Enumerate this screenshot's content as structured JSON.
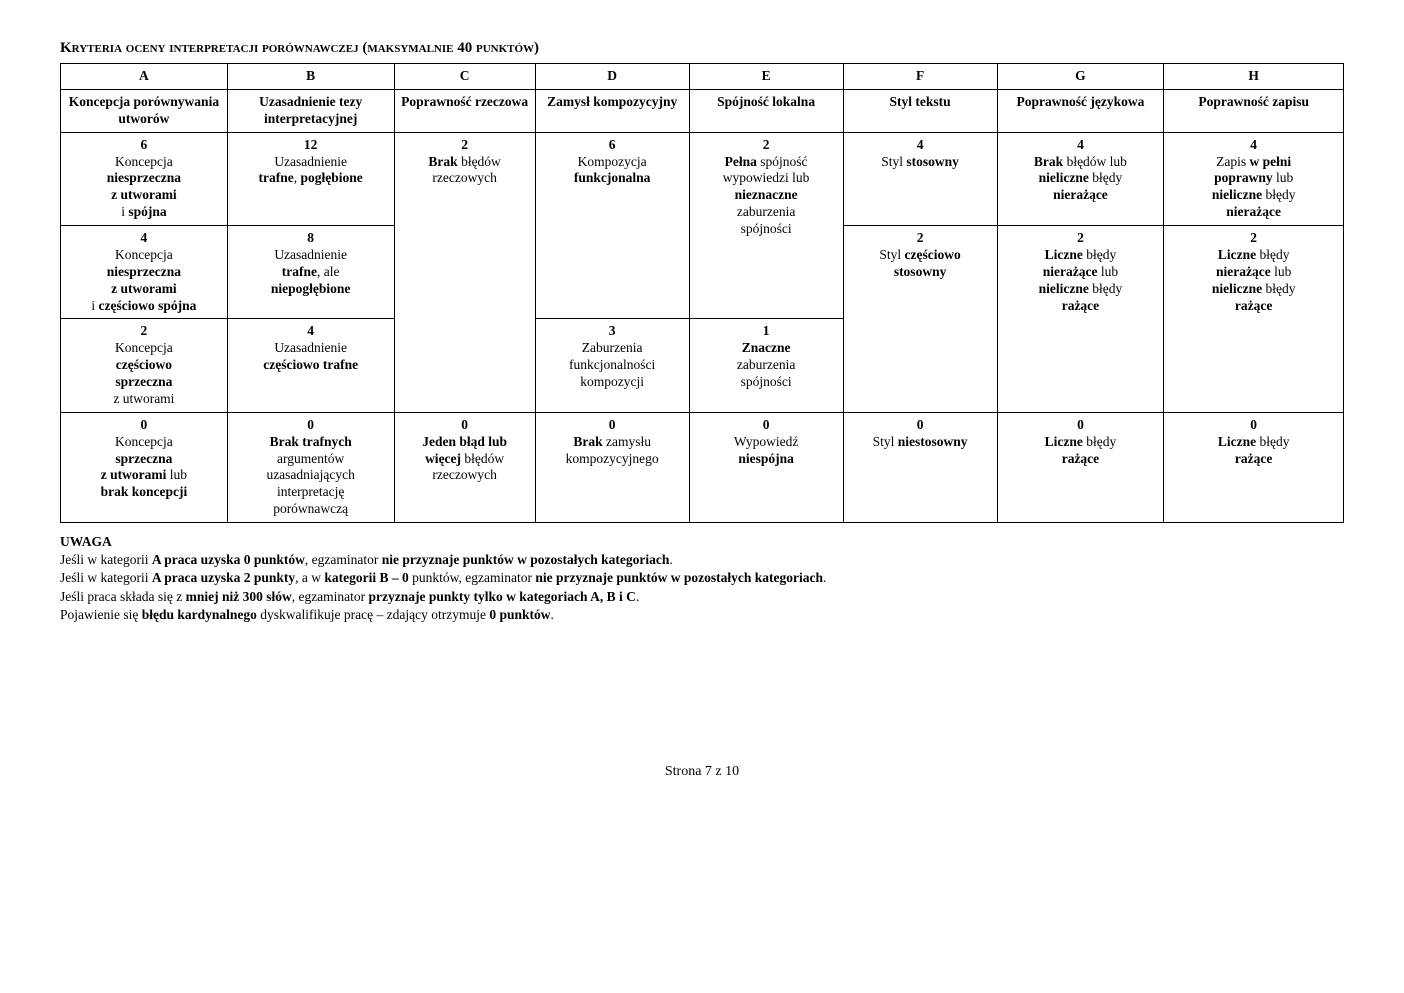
{
  "title": "Kryteria oceny interpretacji porównawczej (maksymalnie 40 punktów)",
  "letters": {
    "a": "A",
    "b": "B",
    "c": "C",
    "d": "D",
    "e": "E",
    "f": "F",
    "g": "G",
    "h": "H"
  },
  "header2": {
    "a": "Koncepcja porównywania utworów",
    "b": "Uzasadnienie tezy interpretacyjnej",
    "c": "Poprawność rzeczowa",
    "d": "Zamysł kompozycyjny",
    "e": "Spójność lokalna",
    "f": "Styl tekstu",
    "g": "Poprawność językowa",
    "h": "Poprawność zapisu"
  },
  "r1": {
    "a_pts": "6",
    "a_l1": "Koncepcja",
    "a_l2": "niesprzeczna",
    "a_l3": "z utworami",
    "a_l4": "i ",
    "a_l4b": "spójna",
    "b_pts": "12",
    "b_l1": "Uzasadnienie",
    "b_l2": "trafne",
    "b_l2b": ", ",
    "b_l2c": "pogłębione",
    "c_pts": "2",
    "c_l1": "Brak",
    "c_l1b": " błędów",
    "c_l2": "rzeczowych",
    "d_pts": "6",
    "d_l1": "Kompozycja",
    "d_l2": "funkcjonalna",
    "e_pts": "2",
    "e_l1": "Pełna",
    "e_l1b": " spójność",
    "e_l2": "wypowiedzi lub",
    "e_l3": "nieznaczne",
    "e_l4": "zaburzenia",
    "e_l5": "spójności",
    "f_pts": "4",
    "f_l1": "Styl ",
    "f_l1b": "stosowny",
    "g_pts": "4",
    "g_l1": "Brak",
    "g_l1b": " błędów lub",
    "g_l2": "nieliczne",
    "g_l2b": " błędy",
    "g_l3": "nierażące",
    "h_pts": "4",
    "h_l1": "Zapis ",
    "h_l1b": "w pełni",
    "h_l2": "poprawny",
    "h_l2b": " lub",
    "h_l3": "nieliczne",
    "h_l3b": " błędy",
    "h_l4": "nierażące"
  },
  "r2": {
    "a_pts": "4",
    "a_l1": "Koncepcja",
    "a_l2": "niesprzeczna",
    "a_l3": "z utworami",
    "a_l4": "i ",
    "a_l4b": "częściowo spójna",
    "b_pts": "8",
    "b_l1": "Uzasadnienie",
    "b_l2": "trafne",
    "b_l2b": ", ale",
    "b_l3": "niepogłębione",
    "f_pts": "2",
    "f_l1": "Styl ",
    "f_l1b": "częściowo",
    "f_l2": "stosowny",
    "g_pts": "2",
    "g_l1": "Liczne",
    "g_l1b": " błędy",
    "g_l2": "nierażące",
    "g_l2b": " lub",
    "g_l3": "nieliczne",
    "g_l3b": " błędy",
    "g_l4": "rażące",
    "h_pts": "2",
    "h_l1": "Liczne",
    "h_l1b": " błędy",
    "h_l2": "nierażące",
    "h_l2b": " lub",
    "h_l3": "nieliczne",
    "h_l3b": " błędy",
    "h_l4": "rażące"
  },
  "r3": {
    "a_pts": "2",
    "a_l1": "Koncepcja",
    "a_l2": "częściowo",
    "a_l3": "sprzeczna",
    "a_l4": "z utworami",
    "b_pts": "4",
    "b_l1": "Uzasadnienie",
    "b_l2": "częściowo trafne",
    "d_pts": "3",
    "d_l1": "Zaburzenia",
    "d_l2": "funkcjonalności",
    "d_l3": "kompozycji",
    "e_pts": "1",
    "e_l1": "Znaczne",
    "e_l2": "zaburzenia",
    "e_l3": "spójności"
  },
  "r4": {
    "a_pts": "0",
    "a_l1": "Koncepcja",
    "a_l2": "sprzeczna",
    "a_l3": "z utworami",
    "a_l3b": " lub",
    "a_l4": "brak koncepcji",
    "b_pts": "0",
    "b_l1": "Brak trafnych",
    "b_l2": "argumentów",
    "b_l3": "uzasadniających",
    "b_l4": "interpretację",
    "b_l5": "porównawczą",
    "c_pts": "0",
    "c_l1": "Jeden błąd lub",
    "c_l2": "więcej",
    "c_l2b": " błędów",
    "c_l3": "rzeczowych",
    "d_pts": "0",
    "d_l1": "Brak",
    "d_l1b": " zamysłu",
    "d_l2": "kompozycyjnego",
    "e_pts": "0",
    "e_l1": "Wypowiedź",
    "e_l2": "niespójna",
    "f_pts": "0",
    "f_l1": "Styl ",
    "f_l1b": "niestosowny",
    "g_pts": "0",
    "g_l1": "Liczne",
    "g_l1b": " błędy",
    "g_l2": "rażące",
    "h_pts": "0",
    "h_l1": "Liczne",
    "h_l1b": " błędy",
    "h_l2": "rażące"
  },
  "uwaga_label": "UWAGA",
  "notes": {
    "n1a": "Jeśli w kategorii ",
    "n1b": "A praca uzyska 0 punktów",
    "n1c": ", egzaminator ",
    "n1d": "nie przyznaje punktów w pozostałych kategoriach",
    "n1e": ".",
    "n2a": "Jeśli w kategorii ",
    "n2b": "A praca uzyska 2 punkty",
    "n2c": ", a w ",
    "n2d": "kategorii B – 0",
    "n2e": " punktów, egzaminator ",
    "n2f": "nie przyznaje punktów w pozostałych kategoriach",
    "n2g": ".",
    "n3a": "Jeśli praca składa się z ",
    "n3b": "mniej niż 300 słów",
    "n3c": ", egzaminator ",
    "n3d": "przyznaje punkty tylko w kategoriach A, B i C",
    "n3e": ".",
    "n4a": "Pojawienie się ",
    "n4b": "błędu kardynalnego",
    "n4c": " dyskwalifikuje pracę – zdający otrzymuje ",
    "n4d": "0 punktów",
    "n4e": "."
  },
  "footer": "Strona 7 z 10"
}
